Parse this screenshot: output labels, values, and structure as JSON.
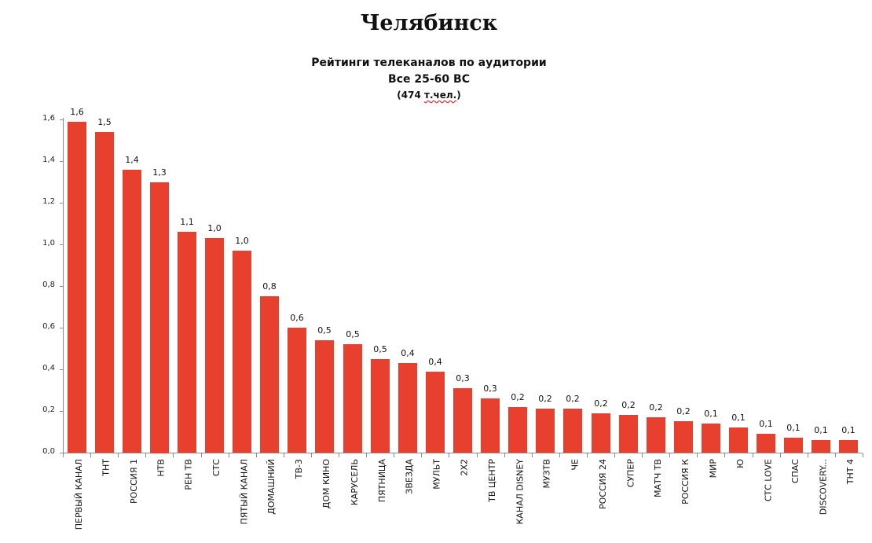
{
  "header": {
    "title": "Челябинск",
    "subtitle_line1": "Рейтинги телеканалов по аудитории",
    "subtitle_line2": "Все 25-60 ВС",
    "subtitle_line3_prefix": "(474 ",
    "subtitle_line3_underlined": "т.чел.",
    "subtitle_line3_suffix": ")"
  },
  "colors": {
    "bar": "#e8402f",
    "axis": "#8a8a8a",
    "text": "#111111"
  },
  "chart_data": {
    "type": "bar",
    "title": "Челябинск",
    "subtitle": "Рейтинги телеканалов по аудитории / Все 25-60 ВС / (474 т.чел.)",
    "xlabel": "",
    "ylabel": "",
    "ylim": [
      0,
      1.6
    ],
    "yticks": [
      "0,0",
      "0,2",
      "0,4",
      "0,6",
      "0,8",
      "1,0",
      "1,2",
      "1,4",
      "1,6"
    ],
    "grid": false,
    "legend": null,
    "categories": [
      "ПЕРВЫЙ КАНАЛ",
      "ТНТ",
      "РОССИЯ 1",
      "НТВ",
      "РЕН ТВ",
      "СТС",
      "ПЯТЫЙ КАНАЛ",
      "ДОМАШНИЙ",
      "ТВ-3",
      "ДОМ КИНО",
      "КАРУСЕЛЬ",
      "ПЯТНИЦА",
      "ЗВЕЗДА",
      "МУЛЬТ",
      "2Х2",
      "ТВ ЦЕНТР",
      "КАНАЛ DISNEY",
      "МУЗТВ",
      "ЧЕ",
      "РОССИЯ 24",
      "СУПЕР",
      "МАТЧ ТВ",
      "РОССИЯ К",
      "МИР",
      "Ю",
      "СТС LOVE",
      "СПАС",
      "DISCOVERY...",
      "ТНТ 4"
    ],
    "values": [
      1.59,
      1.54,
      1.36,
      1.3,
      1.06,
      1.03,
      0.97,
      0.75,
      0.6,
      0.54,
      0.52,
      0.45,
      0.43,
      0.39,
      0.31,
      0.26,
      0.22,
      0.21,
      0.21,
      0.19,
      0.18,
      0.17,
      0.15,
      0.14,
      0.12,
      0.09,
      0.07,
      0.06,
      0.06
    ],
    "data_labels": [
      "1,6",
      "1,5",
      "1,4",
      "1,3",
      "1,1",
      "1,0",
      "1,0",
      "0,8",
      "0,6",
      "0,5",
      "0,5",
      "0,5",
      "0,4",
      "0,4",
      "0,3",
      "0,3",
      "0,2",
      "0,2",
      "0,2",
      "0,2",
      "0,2",
      "0,2",
      "0,2",
      "0,1",
      "0,1",
      "0,1",
      "0,1",
      "0,1",
      "0,1"
    ]
  }
}
